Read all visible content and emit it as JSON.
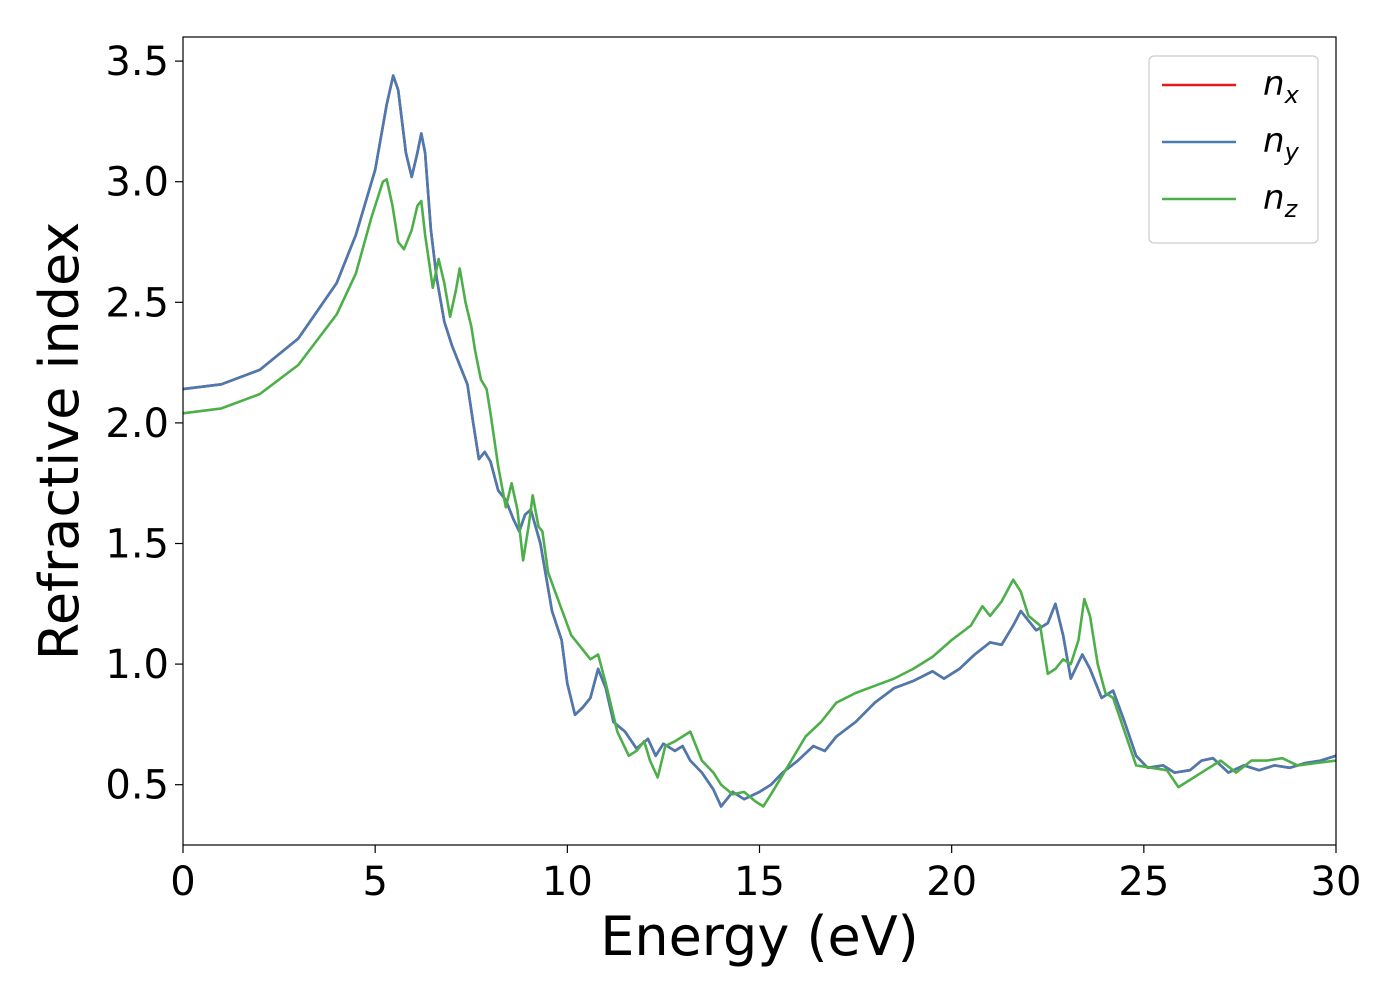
{
  "chart_data": {
    "type": "line",
    "xlabel": "Energy (eV)",
    "ylabel": "Refractive index",
    "xlim": [
      0,
      30
    ],
    "ylim": [
      0.25,
      3.6
    ],
    "xticks": [
      0,
      5,
      10,
      15,
      20,
      25,
      30
    ],
    "xtick_labels": [
      "0",
      "5",
      "10",
      "15",
      "20",
      "25",
      "30"
    ],
    "yticks": [
      0.5,
      1.0,
      1.5,
      2.0,
      2.5,
      3.0,
      3.5
    ],
    "ytick_labels": [
      "0.5",
      "1.0",
      "1.5",
      "2.0",
      "2.5",
      "3.0",
      "3.5"
    ],
    "grid": false,
    "legend_position": "top-right",
    "series": [
      {
        "name": "n",
        "subscript": "x",
        "color": "#e41a1c",
        "points": [
          [
            0,
            2.14
          ],
          [
            1,
            2.16
          ],
          [
            2,
            2.22
          ],
          [
            3,
            2.35
          ],
          [
            4,
            2.58
          ],
          [
            4.5,
            2.78
          ],
          [
            5,
            3.05
          ],
          [
            5.3,
            3.32
          ],
          [
            5.47,
            3.44
          ],
          [
            5.6,
            3.38
          ],
          [
            5.8,
            3.12
          ],
          [
            5.95,
            3.02
          ],
          [
            6.1,
            3.12
          ],
          [
            6.2,
            3.2
          ],
          [
            6.3,
            3.12
          ],
          [
            6.45,
            2.8
          ],
          [
            6.6,
            2.6
          ],
          [
            6.8,
            2.42
          ],
          [
            7.0,
            2.32
          ],
          [
            7.2,
            2.24
          ],
          [
            7.4,
            2.16
          ],
          [
            7.55,
            2.0
          ],
          [
            7.7,
            1.85
          ],
          [
            7.85,
            1.88
          ],
          [
            8.0,
            1.84
          ],
          [
            8.2,
            1.72
          ],
          [
            8.4,
            1.68
          ],
          [
            8.6,
            1.6
          ],
          [
            8.75,
            1.55
          ],
          [
            8.9,
            1.62
          ],
          [
            9.05,
            1.64
          ],
          [
            9.3,
            1.5
          ],
          [
            9.6,
            1.22
          ],
          [
            9.85,
            1.1
          ],
          [
            10.0,
            0.92
          ],
          [
            10.2,
            0.79
          ],
          [
            10.4,
            0.82
          ],
          [
            10.6,
            0.86
          ],
          [
            10.8,
            0.98
          ],
          [
            11.0,
            0.9
          ],
          [
            11.2,
            0.76
          ],
          [
            11.5,
            0.72
          ],
          [
            11.8,
            0.65
          ],
          [
            12.1,
            0.69
          ],
          [
            12.3,
            0.62
          ],
          [
            12.5,
            0.67
          ],
          [
            12.8,
            0.64
          ],
          [
            13.0,
            0.66
          ],
          [
            13.2,
            0.6
          ],
          [
            13.5,
            0.55
          ],
          [
            13.8,
            0.48
          ],
          [
            14.0,
            0.41
          ],
          [
            14.3,
            0.47
          ],
          [
            14.6,
            0.44
          ],
          [
            15.0,
            0.47
          ],
          [
            15.3,
            0.5
          ],
          [
            15.6,
            0.55
          ],
          [
            16.0,
            0.6
          ],
          [
            16.4,
            0.66
          ],
          [
            16.7,
            0.64
          ],
          [
            17.0,
            0.7
          ],
          [
            17.5,
            0.76
          ],
          [
            18.0,
            0.84
          ],
          [
            18.5,
            0.9
          ],
          [
            19.0,
            0.93
          ],
          [
            19.5,
            0.97
          ],
          [
            19.8,
            0.94
          ],
          [
            20.2,
            0.98
          ],
          [
            20.6,
            1.04
          ],
          [
            21.0,
            1.09
          ],
          [
            21.3,
            1.08
          ],
          [
            21.6,
            1.16
          ],
          [
            21.8,
            1.22
          ],
          [
            22.0,
            1.18
          ],
          [
            22.2,
            1.14
          ],
          [
            22.5,
            1.17
          ],
          [
            22.7,
            1.25
          ],
          [
            22.9,
            1.12
          ],
          [
            23.1,
            0.94
          ],
          [
            23.4,
            1.04
          ],
          [
            23.6,
            0.98
          ],
          [
            23.9,
            0.86
          ],
          [
            24.2,
            0.89
          ],
          [
            24.5,
            0.76
          ],
          [
            24.8,
            0.62
          ],
          [
            25.1,
            0.57
          ],
          [
            25.5,
            0.58
          ],
          [
            25.8,
            0.55
          ],
          [
            26.2,
            0.56
          ],
          [
            26.5,
            0.6
          ],
          [
            26.8,
            0.61
          ],
          [
            27.2,
            0.55
          ],
          [
            27.6,
            0.58
          ],
          [
            28.0,
            0.56
          ],
          [
            28.4,
            0.58
          ],
          [
            28.8,
            0.57
          ],
          [
            29.2,
            0.59
          ],
          [
            29.6,
            0.6
          ],
          [
            30.0,
            0.62
          ]
        ]
      },
      {
        "name": "n",
        "subscript": "y",
        "color": "#4a7bb0",
        "points": [
          [
            0,
            2.14
          ],
          [
            1,
            2.16
          ],
          [
            2,
            2.22
          ],
          [
            3,
            2.35
          ],
          [
            4,
            2.58
          ],
          [
            4.5,
            2.78
          ],
          [
            5,
            3.05
          ],
          [
            5.3,
            3.32
          ],
          [
            5.47,
            3.44
          ],
          [
            5.6,
            3.38
          ],
          [
            5.8,
            3.12
          ],
          [
            5.95,
            3.02
          ],
          [
            6.1,
            3.12
          ],
          [
            6.2,
            3.2
          ],
          [
            6.3,
            3.12
          ],
          [
            6.45,
            2.8
          ],
          [
            6.6,
            2.6
          ],
          [
            6.8,
            2.42
          ],
          [
            7.0,
            2.32
          ],
          [
            7.2,
            2.24
          ],
          [
            7.4,
            2.16
          ],
          [
            7.55,
            2.0
          ],
          [
            7.7,
            1.85
          ],
          [
            7.85,
            1.88
          ],
          [
            8.0,
            1.84
          ],
          [
            8.2,
            1.72
          ],
          [
            8.4,
            1.68
          ],
          [
            8.6,
            1.6
          ],
          [
            8.75,
            1.55
          ],
          [
            8.9,
            1.62
          ],
          [
            9.05,
            1.64
          ],
          [
            9.3,
            1.5
          ],
          [
            9.6,
            1.22
          ],
          [
            9.85,
            1.1
          ],
          [
            10.0,
            0.92
          ],
          [
            10.2,
            0.79
          ],
          [
            10.4,
            0.82
          ],
          [
            10.6,
            0.86
          ],
          [
            10.8,
            0.98
          ],
          [
            11.0,
            0.9
          ],
          [
            11.2,
            0.76
          ],
          [
            11.5,
            0.72
          ],
          [
            11.8,
            0.65
          ],
          [
            12.1,
            0.69
          ],
          [
            12.3,
            0.62
          ],
          [
            12.5,
            0.67
          ],
          [
            12.8,
            0.64
          ],
          [
            13.0,
            0.66
          ],
          [
            13.2,
            0.6
          ],
          [
            13.5,
            0.55
          ],
          [
            13.8,
            0.48
          ],
          [
            14.0,
            0.41
          ],
          [
            14.3,
            0.47
          ],
          [
            14.6,
            0.44
          ],
          [
            15.0,
            0.47
          ],
          [
            15.3,
            0.5
          ],
          [
            15.6,
            0.55
          ],
          [
            16.0,
            0.6
          ],
          [
            16.4,
            0.66
          ],
          [
            16.7,
            0.64
          ],
          [
            17.0,
            0.7
          ],
          [
            17.5,
            0.76
          ],
          [
            18.0,
            0.84
          ],
          [
            18.5,
            0.9
          ],
          [
            19.0,
            0.93
          ],
          [
            19.5,
            0.97
          ],
          [
            19.8,
            0.94
          ],
          [
            20.2,
            0.98
          ],
          [
            20.6,
            1.04
          ],
          [
            21.0,
            1.09
          ],
          [
            21.3,
            1.08
          ],
          [
            21.6,
            1.16
          ],
          [
            21.8,
            1.22
          ],
          [
            22.0,
            1.18
          ],
          [
            22.2,
            1.14
          ],
          [
            22.5,
            1.17
          ],
          [
            22.7,
            1.25
          ],
          [
            22.9,
            1.12
          ],
          [
            23.1,
            0.94
          ],
          [
            23.4,
            1.04
          ],
          [
            23.6,
            0.98
          ],
          [
            23.9,
            0.86
          ],
          [
            24.2,
            0.89
          ],
          [
            24.5,
            0.76
          ],
          [
            24.8,
            0.62
          ],
          [
            25.1,
            0.57
          ],
          [
            25.5,
            0.58
          ],
          [
            25.8,
            0.55
          ],
          [
            26.2,
            0.56
          ],
          [
            26.5,
            0.6
          ],
          [
            26.8,
            0.61
          ],
          [
            27.2,
            0.55
          ],
          [
            27.6,
            0.58
          ],
          [
            28.0,
            0.56
          ],
          [
            28.4,
            0.58
          ],
          [
            28.8,
            0.57
          ],
          [
            29.2,
            0.59
          ],
          [
            29.6,
            0.6
          ],
          [
            30.0,
            0.62
          ]
        ]
      },
      {
        "name": "n",
        "subscript": "z",
        "color": "#4daf4a",
        "points": [
          [
            0,
            2.04
          ],
          [
            1,
            2.06
          ],
          [
            2,
            2.12
          ],
          [
            3,
            2.24
          ],
          [
            4,
            2.45
          ],
          [
            4.5,
            2.62
          ],
          [
            4.9,
            2.85
          ],
          [
            5.2,
            3.0
          ],
          [
            5.3,
            3.01
          ],
          [
            5.45,
            2.9
          ],
          [
            5.6,
            2.75
          ],
          [
            5.75,
            2.72
          ],
          [
            5.95,
            2.8
          ],
          [
            6.1,
            2.9
          ],
          [
            6.2,
            2.92
          ],
          [
            6.3,
            2.78
          ],
          [
            6.5,
            2.56
          ],
          [
            6.65,
            2.68
          ],
          [
            6.8,
            2.58
          ],
          [
            6.95,
            2.44
          ],
          [
            7.1,
            2.55
          ],
          [
            7.2,
            2.64
          ],
          [
            7.35,
            2.5
          ],
          [
            7.5,
            2.4
          ],
          [
            7.6,
            2.3
          ],
          [
            7.75,
            2.18
          ],
          [
            7.9,
            2.14
          ],
          [
            8.0,
            2.04
          ],
          [
            8.2,
            1.82
          ],
          [
            8.4,
            1.65
          ],
          [
            8.55,
            1.75
          ],
          [
            8.7,
            1.64
          ],
          [
            8.85,
            1.43
          ],
          [
            9.0,
            1.58
          ],
          [
            9.1,
            1.7
          ],
          [
            9.25,
            1.57
          ],
          [
            9.35,
            1.55
          ],
          [
            9.5,
            1.38
          ],
          [
            9.8,
            1.25
          ],
          [
            10.1,
            1.12
          ],
          [
            10.4,
            1.06
          ],
          [
            10.6,
            1.02
          ],
          [
            10.8,
            1.04
          ],
          [
            11.0,
            0.92
          ],
          [
            11.3,
            0.72
          ],
          [
            11.6,
            0.62
          ],
          [
            11.8,
            0.64
          ],
          [
            12.0,
            0.68
          ],
          [
            12.15,
            0.6
          ],
          [
            12.35,
            0.53
          ],
          [
            12.55,
            0.66
          ],
          [
            12.8,
            0.68
          ],
          [
            13.0,
            0.7
          ],
          [
            13.2,
            0.72
          ],
          [
            13.5,
            0.6
          ],
          [
            13.8,
            0.55
          ],
          [
            14.0,
            0.5
          ],
          [
            14.3,
            0.46
          ],
          [
            14.6,
            0.47
          ],
          [
            14.9,
            0.43
          ],
          [
            15.1,
            0.41
          ],
          [
            15.3,
            0.46
          ],
          [
            15.6,
            0.54
          ],
          [
            15.9,
            0.62
          ],
          [
            16.2,
            0.7
          ],
          [
            16.6,
            0.76
          ],
          [
            17.0,
            0.84
          ],
          [
            17.5,
            0.88
          ],
          [
            18.0,
            0.91
          ],
          [
            18.5,
            0.94
          ],
          [
            19.0,
            0.98
          ],
          [
            19.5,
            1.03
          ],
          [
            20.0,
            1.1
          ],
          [
            20.5,
            1.16
          ],
          [
            20.8,
            1.24
          ],
          [
            21.0,
            1.2
          ],
          [
            21.3,
            1.26
          ],
          [
            21.6,
            1.35
          ],
          [
            21.8,
            1.3
          ],
          [
            22.0,
            1.2
          ],
          [
            22.3,
            1.16
          ],
          [
            22.5,
            0.96
          ],
          [
            22.7,
            0.98
          ],
          [
            22.9,
            1.02
          ],
          [
            23.1,
            1.0
          ],
          [
            23.3,
            1.1
          ],
          [
            23.45,
            1.27
          ],
          [
            23.6,
            1.2
          ],
          [
            23.8,
            1.0
          ],
          [
            24.0,
            0.88
          ],
          [
            24.2,
            0.86
          ],
          [
            24.5,
            0.72
          ],
          [
            24.8,
            0.58
          ],
          [
            25.2,
            0.57
          ],
          [
            25.6,
            0.56
          ],
          [
            25.9,
            0.49
          ],
          [
            26.2,
            0.52
          ],
          [
            26.6,
            0.56
          ],
          [
            27.0,
            0.6
          ],
          [
            27.4,
            0.55
          ],
          [
            27.8,
            0.6
          ],
          [
            28.2,
            0.6
          ],
          [
            28.6,
            0.61
          ],
          [
            29.0,
            0.58
          ],
          [
            29.5,
            0.59
          ],
          [
            30.0,
            0.6
          ]
        ]
      }
    ]
  }
}
